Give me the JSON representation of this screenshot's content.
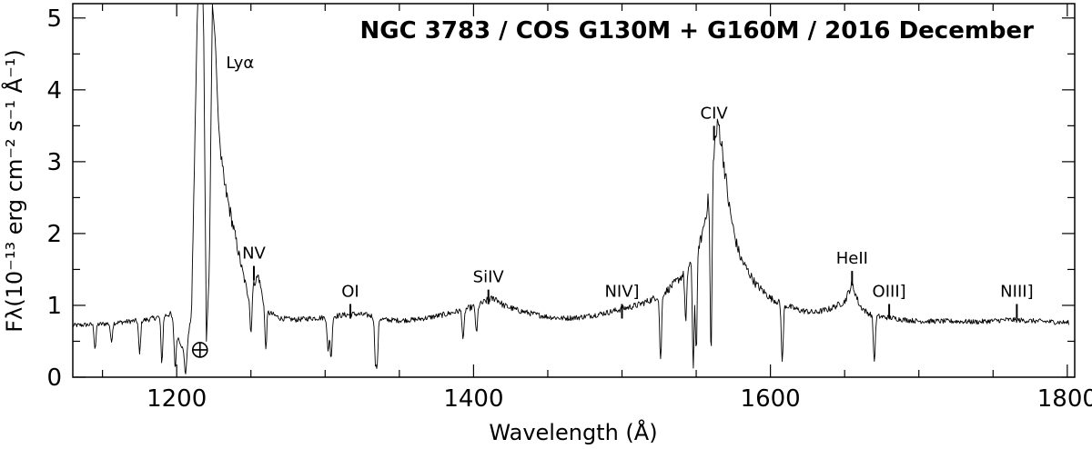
{
  "chart_data": {
    "type": "line",
    "title": "NGC 3783 / COS G130M + G160M / 2016 December",
    "xlabel": "Wavelength (Å)",
    "ylabel": "Fλ(10⁻¹³ erg cm⁻² s⁻¹ Å⁻¹)",
    "xlim": [
      1130,
      1805
    ],
    "ylim": [
      0,
      5.2
    ],
    "x_ticks": [
      1200,
      1400,
      1600,
      1800
    ],
    "x_tick_labels": [
      "1200",
      "1400",
      "1600",
      "1800"
    ],
    "y_ticks": [
      0,
      1,
      2,
      3,
      4,
      5
    ],
    "y_tick_labels": [
      "0",
      "1",
      "2",
      "3",
      "4",
      "5"
    ],
    "grid": false,
    "legend": "none",
    "series": [
      {
        "x": [
          1130,
          1140,
          1150,
          1160,
          1170,
          1180,
          1190,
          1196,
          1200,
          1206,
          1210,
          1214,
          1216,
          1218,
          1220,
          1222,
          1224,
          1226,
          1228,
          1230,
          1232,
          1236,
          1240,
          1244,
          1248,
          1252,
          1255,
          1258,
          1262,
          1270,
          1280,
          1290,
          1300,
          1310,
          1320,
          1330,
          1340,
          1350,
          1360,
          1370,
          1380,
          1390,
          1400,
          1405,
          1410,
          1415,
          1420,
          1430,
          1440,
          1450,
          1460,
          1470,
          1480,
          1490,
          1500,
          1510,
          1520,
          1530,
          1540,
          1545,
          1550,
          1553,
          1556,
          1559,
          1562,
          1565,
          1568,
          1572,
          1576,
          1580,
          1590,
          1600,
          1610,
          1620,
          1630,
          1640,
          1650,
          1655,
          1660,
          1665,
          1670,
          1680,
          1690,
          1700,
          1720,
          1740,
          1760,
          1780,
          1800
        ],
        "y": [
          0.72,
          0.73,
          0.74,
          0.76,
          0.78,
          0.8,
          0.85,
          0.88,
          0.6,
          0.3,
          0.9,
          5.2,
          5.2,
          5.2,
          0.5,
          1.5,
          5.2,
          4.7,
          3.6,
          3.0,
          2.7,
          2.3,
          1.9,
          1.5,
          1.15,
          1.3,
          1.42,
          1.1,
          0.9,
          0.82,
          0.8,
          0.82,
          0.83,
          0.86,
          0.88,
          0.86,
          0.8,
          0.79,
          0.8,
          0.83,
          0.87,
          0.92,
          0.98,
          1.02,
          1.08,
          1.1,
          1.0,
          0.93,
          0.88,
          0.84,
          0.82,
          0.83,
          0.86,
          0.9,
          0.95,
          1.0,
          1.08,
          1.2,
          1.4,
          1.55,
          1.8,
          1.9,
          2.2,
          2.6,
          3.2,
          3.55,
          3.1,
          2.4,
          1.95,
          1.65,
          1.3,
          1.1,
          1.0,
          0.93,
          0.9,
          0.95,
          1.05,
          1.3,
          1.0,
          0.9,
          0.85,
          0.83,
          0.8,
          0.78,
          0.78,
          0.77,
          0.8,
          0.78,
          0.76
        ]
      }
    ],
    "absorption_lines": [
      {
        "x": 1145,
        "depth": 0.45
      },
      {
        "x": 1156,
        "depth": 0.35
      },
      {
        "x": 1175,
        "depth": 0.6
      },
      {
        "x": 1190,
        "depth": 0.75
      },
      {
        "x": 1199,
        "depth": 0.8
      },
      {
        "x": 1206,
        "depth": 0.85
      },
      {
        "x": 1250,
        "depth": 0.5
      },
      {
        "x": 1260,
        "depth": 0.6
      },
      {
        "x": 1302,
        "depth": 0.6
      },
      {
        "x": 1304,
        "depth": 0.7
      },
      {
        "x": 1334,
        "depth": 0.75
      },
      {
        "x": 1335,
        "depth": 0.8
      },
      {
        "x": 1393,
        "depth": 0.45
      },
      {
        "x": 1402,
        "depth": 0.4
      },
      {
        "x": 1526,
        "depth": 0.8
      },
      {
        "x": 1543,
        "depth": 0.5
      },
      {
        "x": 1548,
        "depth": 0.9
      },
      {
        "x": 1550,
        "depth": 0.8
      },
      {
        "x": 1560,
        "depth": 0.9
      },
      {
        "x": 1608,
        "depth": 0.8
      },
      {
        "x": 1670,
        "depth": 0.75
      }
    ],
    "annotations": [
      {
        "label": "Lyα",
        "x": 1232,
        "y": 4.3,
        "marker": false
      },
      {
        "label": "NV",
        "x": 1252,
        "y": 1.65,
        "marker": true
      },
      {
        "label": "OI",
        "x": 1317,
        "y": 1.12,
        "marker": true
      },
      {
        "label": "SiIV",
        "x": 1410,
        "y": 1.32,
        "marker": true
      },
      {
        "label": "NIV]",
        "x": 1500,
        "y": 1.12,
        "marker": true
      },
      {
        "label": "CIV",
        "x": 1562,
        "y": 3.6,
        "marker": true
      },
      {
        "label": "HeII",
        "x": 1655,
        "y": 1.58,
        "marker": true
      },
      {
        "label": "OIII]",
        "x": 1680,
        "y": 1.12,
        "marker": true
      },
      {
        "label": "NIII]",
        "x": 1766,
        "y": 1.12,
        "marker": true
      }
    ],
    "geocoronal_symbol": {
      "x": 1215.7,
      "y": 0.38
    }
  }
}
